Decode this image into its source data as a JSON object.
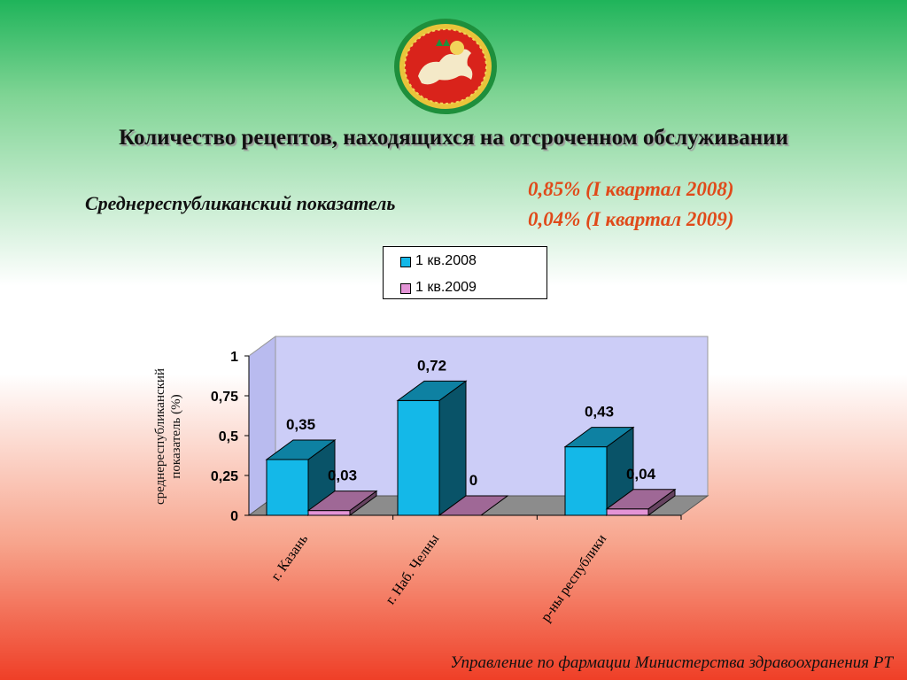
{
  "slide": {
    "title": "Количество рецептов, находящихся на отсроченном обслуживании",
    "average_label": "Среднереспубликанский показатель",
    "average_2008": "0,85% (I квартал 2008)",
    "average_2009": "0,04% (I квартал 2009)",
    "footer": "Управление по фармации Министерства здравоохранения РТ",
    "emblem": "emblem-of-tatarstan"
  },
  "chart_data": {
    "type": "bar",
    "categories": [
      "г. Казань",
      "г. Наб. Челны",
      "р-ны республики"
    ],
    "series": [
      {
        "name": "1 кв.2008",
        "values": [
          0.35,
          0.72,
          0.43
        ],
        "labels": [
          "0,35",
          "0,72",
          "0,43"
        ],
        "color": "#14b8e8"
      },
      {
        "name": "1 кв.2009",
        "values": [
          0.03,
          0,
          0.04
        ],
        "labels": [
          "0,03",
          "0",
          "0,04"
        ],
        "color": "#e394d6"
      }
    ],
    "ylabel": "среднереспубликанский показатель (%)",
    "ylim": [
      0,
      1
    ],
    "yticks": [
      0,
      0.25,
      0.5,
      0.75,
      1
    ],
    "ytick_labels": [
      "0",
      "0,25",
      "0,5",
      "0,75",
      "1"
    ],
    "legend": "top-center",
    "wall_color": "#cccdf7",
    "floor_color": "#8c8c8c"
  }
}
